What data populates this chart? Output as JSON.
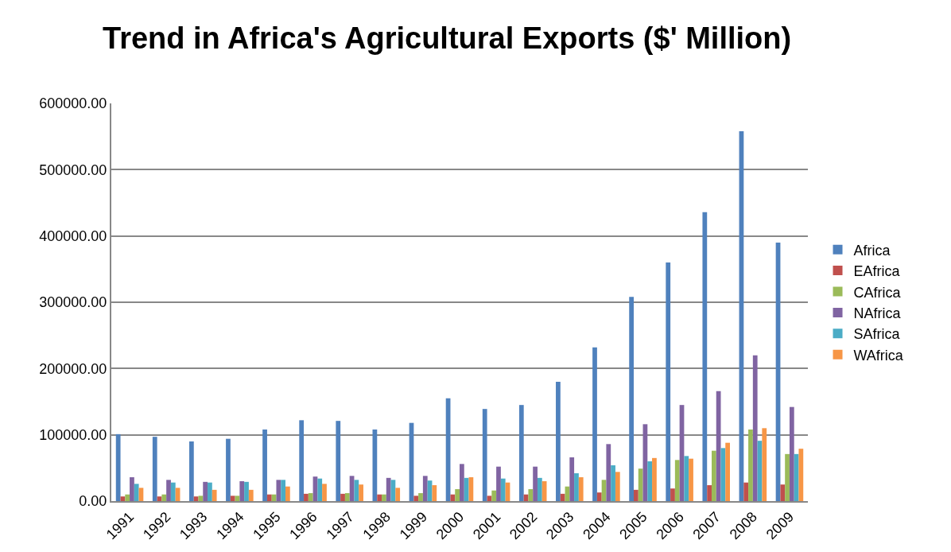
{
  "chart_data": {
    "type": "bar",
    "title": "Trend in Africa's Agricultural Exports ($' Million)",
    "categories": [
      "1991",
      "1992",
      "1993",
      "1994",
      "1995",
      "1996",
      "1997",
      "1998",
      "1999",
      "2000",
      "2001",
      "2002",
      "2003",
      "2004",
      "2005",
      "2006",
      "2007",
      "2008",
      "2009"
    ],
    "series": [
      {
        "name": "Africa",
        "color": "#4f81bd",
        "values": [
          101000,
          97000,
          90000,
          94000,
          108000,
          122000,
          121000,
          108000,
          118000,
          155000,
          139000,
          145000,
          180000,
          232000,
          308000,
          360000,
          436000,
          558000,
          390000
        ]
      },
      {
        "name": "EAfrica",
        "color": "#c0504d",
        "values": [
          7000,
          7000,
          7000,
          8000,
          10000,
          11000,
          11000,
          10000,
          8000,
          10000,
          8000,
          10000,
          11000,
          13000,
          17000,
          19000,
          24000,
          28000,
          25000
        ]
      },
      {
        "name": "CAfrica",
        "color": "#9bbb59",
        "values": [
          10000,
          10000,
          8000,
          8000,
          10000,
          12000,
          12000,
          10000,
          12000,
          18000,
          16000,
          18000,
          22000,
          32000,
          49000,
          62000,
          76000,
          108000,
          71000
        ]
      },
      {
        "name": "NAfrica",
        "color": "#8064a2",
        "values": [
          36000,
          32000,
          29000,
          30000,
          32000,
          37000,
          38000,
          35000,
          38000,
          56000,
          52000,
          52000,
          66000,
          86000,
          116000,
          145000,
          166000,
          220000,
          142000
        ]
      },
      {
        "name": "SAfrica",
        "color": "#4bacc6",
        "values": [
          26000,
          28000,
          28000,
          29000,
          32000,
          34000,
          32000,
          32000,
          31000,
          35000,
          34000,
          35000,
          42000,
          54000,
          60000,
          68000,
          80000,
          91000,
          71000
        ]
      },
      {
        "name": "WAfrica",
        "color": "#f79646",
        "values": [
          20000,
          20000,
          17000,
          17000,
          22000,
          26000,
          25000,
          20000,
          24000,
          36000,
          28000,
          30000,
          36000,
          44000,
          65000,
          64000,
          88000,
          110000,
          79000
        ]
      }
    ],
    "ylim": [
      0,
      600000
    ],
    "yticks": [
      {
        "value": 0,
        "label": "0.00"
      },
      {
        "value": 100000,
        "label": "100000.00"
      },
      {
        "value": 200000,
        "label": "200000.00"
      },
      {
        "value": 300000,
        "label": "300000.00"
      },
      {
        "value": 400000,
        "label": "400000.00"
      },
      {
        "value": 500000,
        "label": "500000.00"
      },
      {
        "value": 600000,
        "label": "600000.00"
      }
    ],
    "grid": "y",
    "legend": "right"
  }
}
